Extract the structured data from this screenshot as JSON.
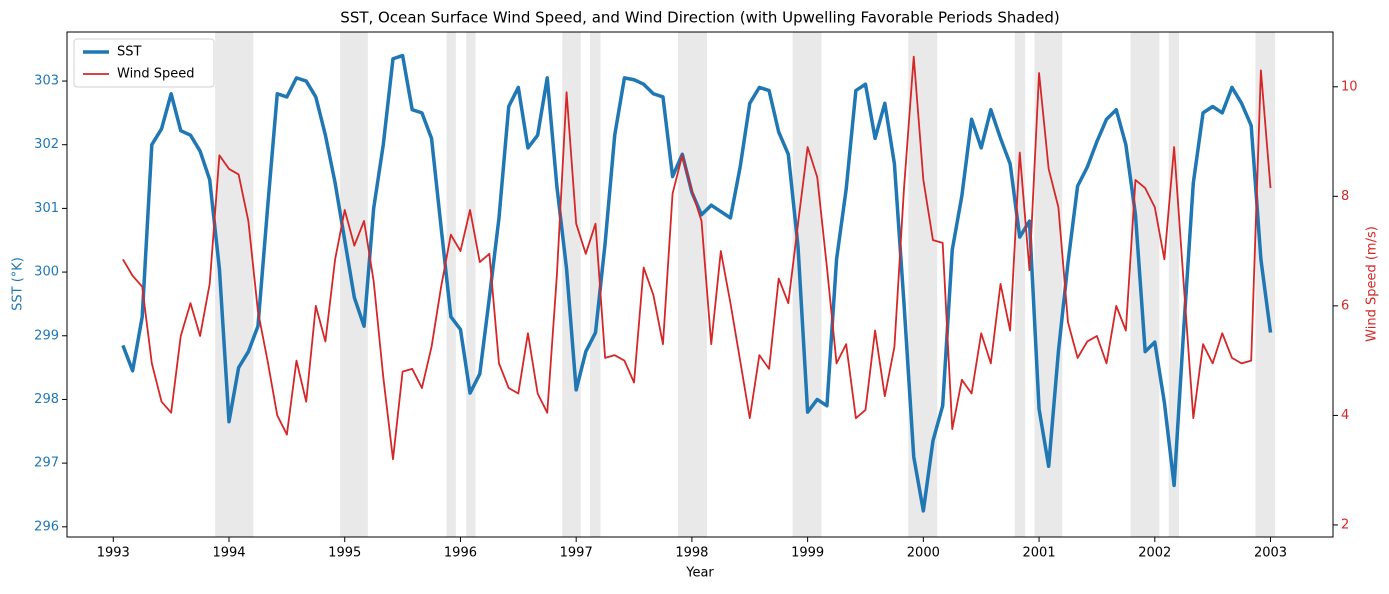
{
  "chart_data": {
    "type": "line",
    "title": "SST, Ocean Surface Wind Speed, and Wind Direction (with Upwelling Favorable Periods Shaded)",
    "xlabel": "Year",
    "ylabel": "SST (°K)",
    "y2label": "Wind Speed (m/s)",
    "x": [
      1993.083,
      1993.167,
      1993.25,
      1993.333,
      1993.417,
      1993.5,
      1993.583,
      1993.667,
      1993.75,
      1993.833,
      1993.917,
      1994,
      1994.083,
      1994.167,
      1994.25,
      1994.333,
      1994.417,
      1994.5,
      1994.583,
      1994.667,
      1994.75,
      1994.833,
      1994.917,
      1995,
      1995.083,
      1995.167,
      1995.25,
      1995.333,
      1995.417,
      1995.5,
      1995.583,
      1995.667,
      1995.75,
      1995.833,
      1995.917,
      1996,
      1996.083,
      1996.167,
      1996.25,
      1996.333,
      1996.417,
      1996.5,
      1996.583,
      1996.667,
      1996.75,
      1996.833,
      1996.917,
      1997,
      1997.083,
      1997.167,
      1997.25,
      1997.333,
      1997.417,
      1997.5,
      1997.583,
      1997.667,
      1997.75,
      1997.833,
      1997.917,
      1998,
      1998.083,
      1998.167,
      1998.25,
      1998.333,
      1998.417,
      1998.5,
      1998.583,
      1998.667,
      1998.75,
      1998.833,
      1998.917,
      1999,
      1999.083,
      1999.167,
      1999.25,
      1999.333,
      1999.417,
      1999.5,
      1999.583,
      1999.667,
      1999.75,
      1999.833,
      1999.917,
      2000,
      2000.083,
      2000.167,
      2000.25,
      2000.333,
      2000.417,
      2000.5,
      2000.583,
      2000.667,
      2000.75,
      2000.833,
      2000.917,
      2001,
      2001.083,
      2001.167,
      2001.25,
      2001.333,
      2001.417,
      2001.5,
      2001.583,
      2001.667,
      2001.75,
      2001.833,
      2001.917,
      2002,
      2002.083,
      2002.167,
      2002.25,
      2002.333,
      2002.417,
      2002.5,
      2002.583,
      2002.667,
      2002.75,
      2002.833,
      2002.917,
      2003
    ],
    "series": [
      {
        "name": "SST",
        "color": "#1f77b4",
        "axis": "y",
        "values": [
          298.85,
          298.45,
          299.3,
          302.0,
          302.25,
          302.8,
          302.22,
          302.15,
          301.9,
          301.45,
          300.05,
          297.65,
          298.5,
          298.75,
          299.15,
          301.0,
          302.8,
          302.75,
          303.05,
          303.0,
          302.75,
          302.15,
          301.4,
          300.5,
          299.6,
          299.15,
          301.0,
          302.0,
          303.35,
          303.4,
          302.55,
          302.5,
          302.1,
          300.7,
          299.3,
          299.1,
          298.1,
          298.4,
          299.6,
          300.85,
          302.6,
          302.9,
          301.95,
          302.15,
          303.05,
          301.35,
          300.05,
          298.15,
          298.75,
          299.05,
          300.45,
          302.15,
          303.05,
          303.02,
          302.95,
          302.8,
          302.75,
          301.5,
          301.85,
          301.25,
          300.9,
          301.05,
          300.95,
          300.85,
          301.65,
          302.65,
          302.9,
          302.85,
          302.2,
          301.85,
          300.4,
          297.8,
          298.0,
          297.9,
          300.2,
          301.3,
          302.85,
          302.95,
          302.1,
          302.65,
          301.7,
          299.5,
          297.1,
          296.25,
          297.35,
          297.9,
          300.35,
          301.2,
          302.4,
          301.95,
          302.55,
          302.1,
          301.7,
          300.55,
          300.8,
          297.85,
          296.95,
          298.75,
          300.15,
          301.35,
          301.65,
          302.05,
          302.4,
          302.55,
          302.0,
          300.9,
          298.75,
          298.9,
          297.95,
          296.65,
          299.1,
          301.4,
          302.5,
          302.6,
          302.5,
          302.9,
          302.65,
          302.3,
          300.2,
          299.05
        ]
      },
      {
        "name": "Wind Speed",
        "color": "#d62728",
        "axis": "y2",
        "values": [
          6.85,
          6.55,
          6.35,
          4.95,
          4.25,
          4.05,
          5.45,
          6.05,
          5.45,
          6.4,
          8.75,
          8.5,
          8.4,
          7.55,
          5.9,
          5.0,
          4.0,
          3.65,
          5.0,
          4.25,
          6.0,
          5.35,
          6.85,
          7.75,
          7.1,
          7.55,
          6.45,
          4.7,
          3.2,
          4.8,
          4.85,
          4.5,
          5.25,
          6.35,
          7.3,
          7.0,
          7.75,
          6.8,
          6.95,
          4.95,
          4.5,
          4.4,
          5.5,
          4.4,
          4.05,
          6.55,
          9.9,
          7.5,
          6.95,
          7.5,
          5.05,
          5.1,
          5.0,
          4.6,
          6.7,
          6.2,
          5.3,
          8.05,
          8.75,
          8.1,
          7.55,
          5.3,
          7.0,
          6.05,
          5.0,
          3.95,
          5.1,
          4.85,
          6.5,
          6.05,
          7.5,
          8.9,
          8.35,
          6.7,
          4.95,
          5.3,
          3.95,
          4.1,
          5.55,
          4.35,
          5.25,
          8.15,
          10.55,
          8.3,
          7.2,
          7.15,
          3.75,
          4.65,
          4.4,
          5.5,
          4.95,
          6.4,
          5.55,
          8.8,
          6.65,
          10.25,
          8.5,
          7.8,
          5.7,
          5.05,
          5.35,
          5.45,
          4.95,
          6.0,
          5.55,
          8.3,
          8.15,
          7.8,
          6.85,
          8.9,
          6.4,
          3.95,
          5.3,
          4.95,
          5.5,
          5.05,
          4.95,
          5.0,
          10.3,
          8.15
        ]
      }
    ],
    "shaded_spans": [
      [
        1993.88,
        1994.21
      ],
      [
        1994.96,
        1995.2
      ],
      [
        1995.88,
        1995.96
      ],
      [
        1996.05,
        1996.13
      ],
      [
        1996.88,
        1997.04
      ],
      [
        1997.12,
        1997.21
      ],
      [
        1997.88,
        1998.13
      ],
      [
        1998.87,
        1999.12
      ],
      [
        1999.87,
        2000.12
      ],
      [
        2000.79,
        2000.88
      ],
      [
        2000.96,
        2001.2
      ],
      [
        2001.79,
        2002.04
      ],
      [
        2002.12,
        2002.21
      ],
      [
        2002.87,
        2003.04
      ]
    ],
    "shade_color": "#d3d3d3",
    "xlim": [
      1992.6,
      2003.54
    ],
    "xticks": [
      1993,
      1994,
      1995,
      1996,
      1997,
      1998,
      1999,
      2000,
      2001,
      2002,
      2003
    ],
    "ylim": [
      295.84,
      303.77
    ],
    "yticks": [
      296,
      297,
      298,
      299,
      300,
      301,
      302,
      303
    ],
    "y2lim": [
      1.78,
      11.0
    ],
    "y2ticks": [
      2,
      4,
      6,
      8,
      10
    ],
    "legend": "upper left"
  }
}
